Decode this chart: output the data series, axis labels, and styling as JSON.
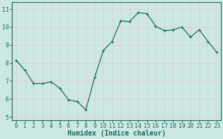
{
  "x": [
    0,
    1,
    2,
    3,
    4,
    5,
    6,
    7,
    8,
    9,
    10,
    11,
    12,
    13,
    14,
    15,
    16,
    17,
    18,
    19,
    20,
    21,
    22,
    23
  ],
  "y": [
    8.15,
    7.6,
    6.85,
    6.85,
    6.95,
    6.6,
    5.95,
    5.85,
    5.4,
    7.2,
    8.7,
    9.2,
    10.35,
    10.3,
    10.8,
    10.75,
    10.05,
    9.8,
    9.85,
    10.0,
    9.45,
    9.85,
    9.2,
    8.6
  ],
  "line_color": "#1a6b5a",
  "marker": "+",
  "markersize": 3.5,
  "linewidth": 0.9,
  "bg_color": "#cce8e4",
  "grid_color": "#e8c8c8",
  "xlabel": "Humidex (Indice chaleur)",
  "xlabel_fontsize": 7,
  "yticks": [
    5,
    6,
    7,
    8,
    9,
    10,
    11
  ],
  "xticks": [
    0,
    1,
    2,
    3,
    4,
    5,
    6,
    7,
    8,
    9,
    10,
    11,
    12,
    13,
    14,
    15,
    16,
    17,
    18,
    19,
    20,
    21,
    22,
    23
  ],
  "ylim": [
    4.8,
    11.4
  ],
  "xlim": [
    -0.5,
    23.5
  ],
  "tick_fontsize": 6,
  "tick_color": "#1a6b5a",
  "spine_color": "#1a6b5a"
}
